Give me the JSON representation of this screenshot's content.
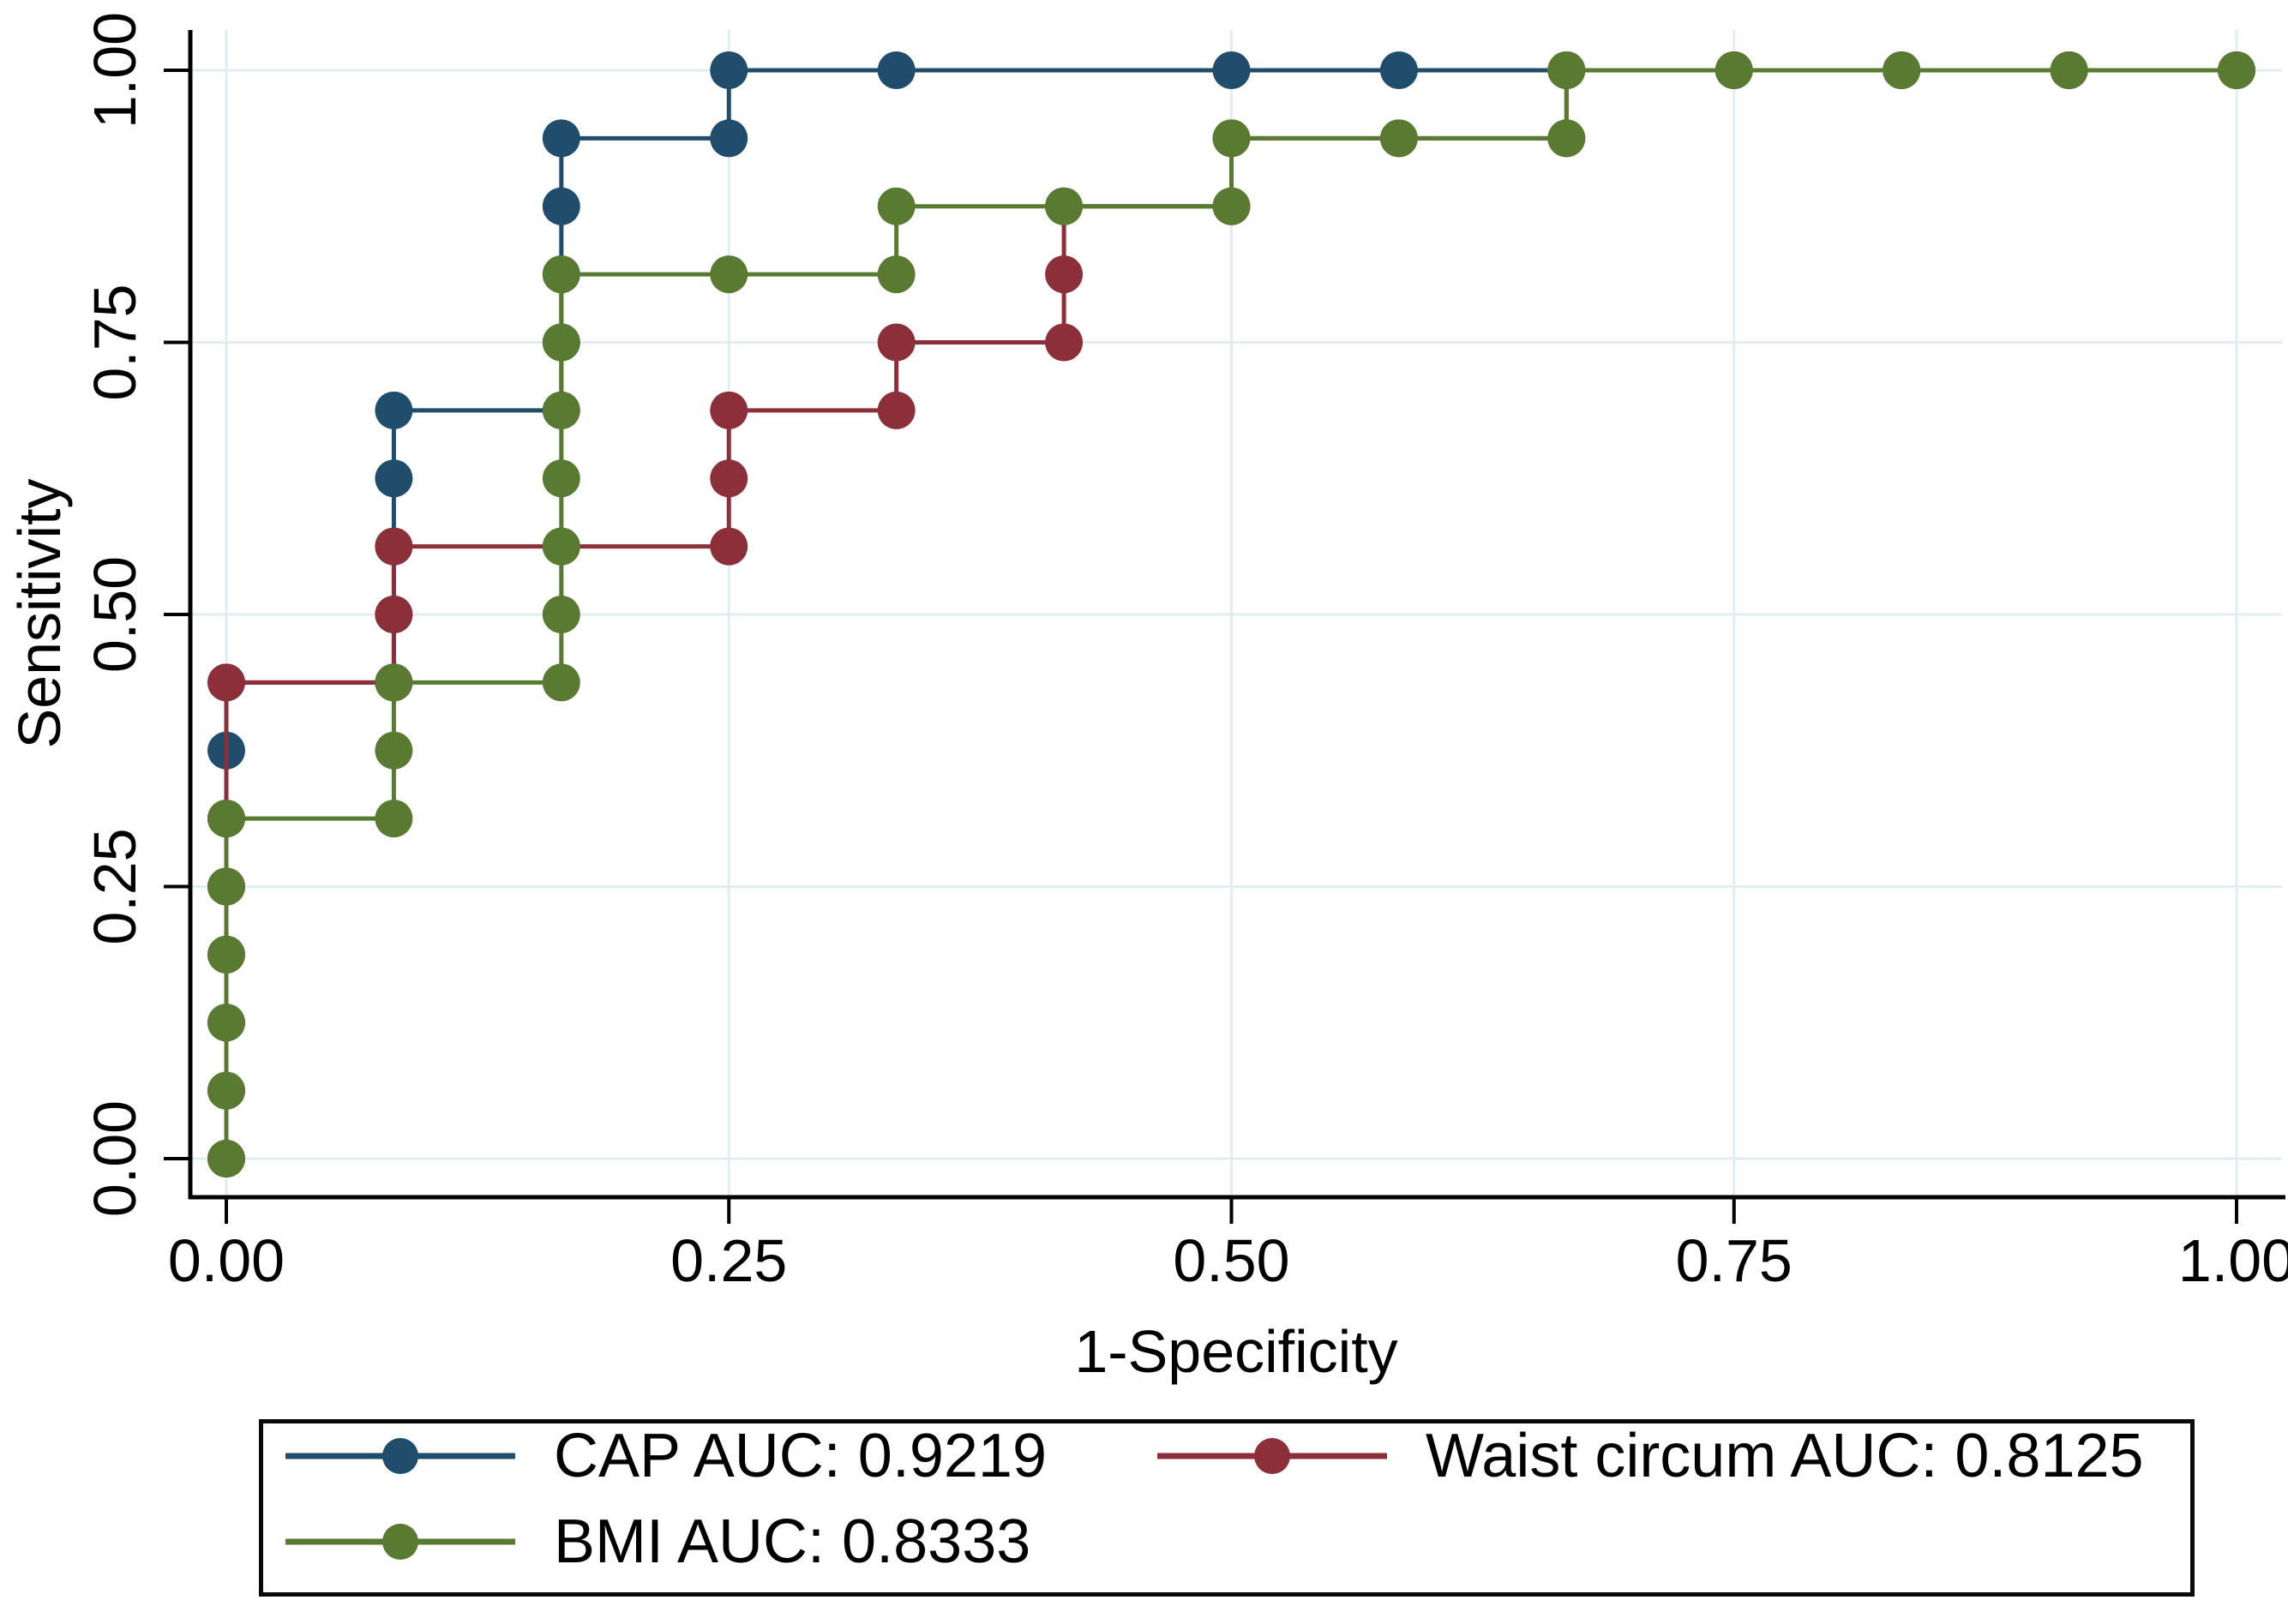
{
  "figure": {
    "background": "#ffffff",
    "axis_color": "#000000",
    "grid_color": "#e0edf1",
    "legend_border_color": "#0a0a0a"
  },
  "chart_data": {
    "type": "line",
    "subtype": "roc-step-curves",
    "title": "",
    "xlabel": "1-Specificity",
    "ylabel": "Sensitivity",
    "xlim": [
      0,
      1
    ],
    "ylim": [
      0,
      1
    ],
    "grid": true,
    "legend_position": "bottom",
    "x_ticks": {
      "values": [
        0,
        0.25,
        0.5,
        0.75,
        1
      ],
      "labels": [
        "0.00",
        "0.25",
        "0.50",
        "0.75",
        "1.00"
      ]
    },
    "y_ticks": {
      "values": [
        0,
        0.25,
        0.5,
        0.75,
        1
      ],
      "labels": [
        "0.00",
        "0.25",
        "0.50",
        "0.75",
        "1.00"
      ]
    },
    "series": [
      {
        "id": "cap",
        "name": "CAP",
        "label": "CAP AUC: 0.9219",
        "auc": 0.9219,
        "color": "#1f4d6b",
        "step_vertices": [
          [
            0,
            0
          ],
          [
            0,
            0.4375
          ],
          [
            0.083333,
            0.4375
          ],
          [
            0.083333,
            0.6875
          ],
          [
            0.166667,
            0.6875
          ],
          [
            0.166667,
            0.9375
          ],
          [
            0.25,
            0.9375
          ],
          [
            0.25,
            1
          ],
          [
            1,
            1
          ]
        ],
        "markers": [
          [
            0,
            0
          ],
          [
            0,
            0.0625
          ],
          [
            0,
            0.125
          ],
          [
            0,
            0.1875
          ],
          [
            0,
            0.25
          ],
          [
            0,
            0.3125
          ],
          [
            0,
            0.375
          ],
          [
            0,
            0.4375
          ],
          [
            0.083333,
            0.4375
          ],
          [
            0.083333,
            0.5
          ],
          [
            0.083333,
            0.5625
          ],
          [
            0.083333,
            0.625
          ],
          [
            0.083333,
            0.6875
          ],
          [
            0.166667,
            0.6875
          ],
          [
            0.166667,
            0.75
          ],
          [
            0.166667,
            0.8125
          ],
          [
            0.166667,
            0.875
          ],
          [
            0.166667,
            0.9375
          ],
          [
            0.25,
            0.9375
          ],
          [
            0.25,
            1
          ],
          [
            0.333333,
            1
          ],
          [
            0.5,
            1
          ],
          [
            0.583333,
            1
          ],
          [
            0.666667,
            1
          ],
          [
            0.75,
            1
          ],
          [
            0.833333,
            1
          ],
          [
            0.916667,
            1
          ],
          [
            1,
            1
          ]
        ]
      },
      {
        "id": "waist",
        "name": "Waist circum",
        "label": "Waist circum AUC: 0.8125",
        "auc": 0.8125,
        "color": "#8c2f39",
        "step_vertices": [
          [
            0,
            0
          ],
          [
            0,
            0.4375
          ],
          [
            0.083333,
            0.4375
          ],
          [
            0.083333,
            0.5625
          ],
          [
            0.25,
            0.5625
          ],
          [
            0.25,
            0.6875
          ],
          [
            0.333333,
            0.6875
          ],
          [
            0.333333,
            0.75
          ],
          [
            0.416667,
            0.75
          ],
          [
            0.416667,
            0.875
          ],
          [
            0.5,
            0.875
          ],
          [
            0.5,
            0.9375
          ],
          [
            0.666667,
            0.9375
          ],
          [
            0.666667,
            1
          ],
          [
            1,
            1
          ]
        ],
        "markers": [
          [
            0,
            0
          ],
          [
            0,
            0.0625
          ],
          [
            0,
            0.125
          ],
          [
            0,
            0.1875
          ],
          [
            0,
            0.25
          ],
          [
            0,
            0.3125
          ],
          [
            0,
            0.4375
          ],
          [
            0.083333,
            0.4375
          ],
          [
            0.083333,
            0.5
          ],
          [
            0.083333,
            0.5625
          ],
          [
            0.166667,
            0.5625
          ],
          [
            0.25,
            0.5625
          ],
          [
            0.25,
            0.625
          ],
          [
            0.25,
            0.6875
          ],
          [
            0.333333,
            0.6875
          ],
          [
            0.333333,
            0.75
          ],
          [
            0.416667,
            0.75
          ],
          [
            0.416667,
            0.8125
          ],
          [
            0.416667,
            0.875
          ],
          [
            0.5,
            0.875
          ],
          [
            0.5,
            0.9375
          ],
          [
            0.583333,
            0.9375
          ],
          [
            0.666667,
            0.9375
          ],
          [
            0.666667,
            1
          ],
          [
            0.75,
            1
          ],
          [
            0.833333,
            1
          ],
          [
            0.916667,
            1
          ],
          [
            1,
            1
          ]
        ]
      },
      {
        "id": "bmi",
        "name": "BMI",
        "label": "BMI AUC: 0.8333",
        "auc": 0.8333,
        "color": "#597b31",
        "step_vertices": [
          [
            0,
            0
          ],
          [
            0,
            0.3125
          ],
          [
            0.083333,
            0.3125
          ],
          [
            0.083333,
            0.4375
          ],
          [
            0.166667,
            0.4375
          ],
          [
            0.166667,
            0.8125
          ],
          [
            0.333333,
            0.8125
          ],
          [
            0.333333,
            0.875
          ],
          [
            0.5,
            0.875
          ],
          [
            0.5,
            0.9375
          ],
          [
            0.666667,
            0.9375
          ],
          [
            0.666667,
            1
          ],
          [
            1,
            1
          ]
        ],
        "markers": [
          [
            0,
            0
          ],
          [
            0,
            0.0625
          ],
          [
            0,
            0.125
          ],
          [
            0,
            0.1875
          ],
          [
            0,
            0.25
          ],
          [
            0,
            0.3125
          ],
          [
            0.083333,
            0.3125
          ],
          [
            0.083333,
            0.375
          ],
          [
            0.083333,
            0.4375
          ],
          [
            0.166667,
            0.4375
          ],
          [
            0.166667,
            0.5
          ],
          [
            0.166667,
            0.5625
          ],
          [
            0.166667,
            0.625
          ],
          [
            0.166667,
            0.6875
          ],
          [
            0.166667,
            0.75
          ],
          [
            0.166667,
            0.8125
          ],
          [
            0.25,
            0.8125
          ],
          [
            0.333333,
            0.8125
          ],
          [
            0.333333,
            0.875
          ],
          [
            0.416667,
            0.875
          ],
          [
            0.5,
            0.875
          ],
          [
            0.5,
            0.9375
          ],
          [
            0.583333,
            0.9375
          ],
          [
            0.666667,
            0.9375
          ],
          [
            0.666667,
            1
          ],
          [
            0.75,
            1
          ],
          [
            0.833333,
            1
          ],
          [
            0.916667,
            1
          ],
          [
            1,
            1
          ]
        ]
      }
    ]
  }
}
